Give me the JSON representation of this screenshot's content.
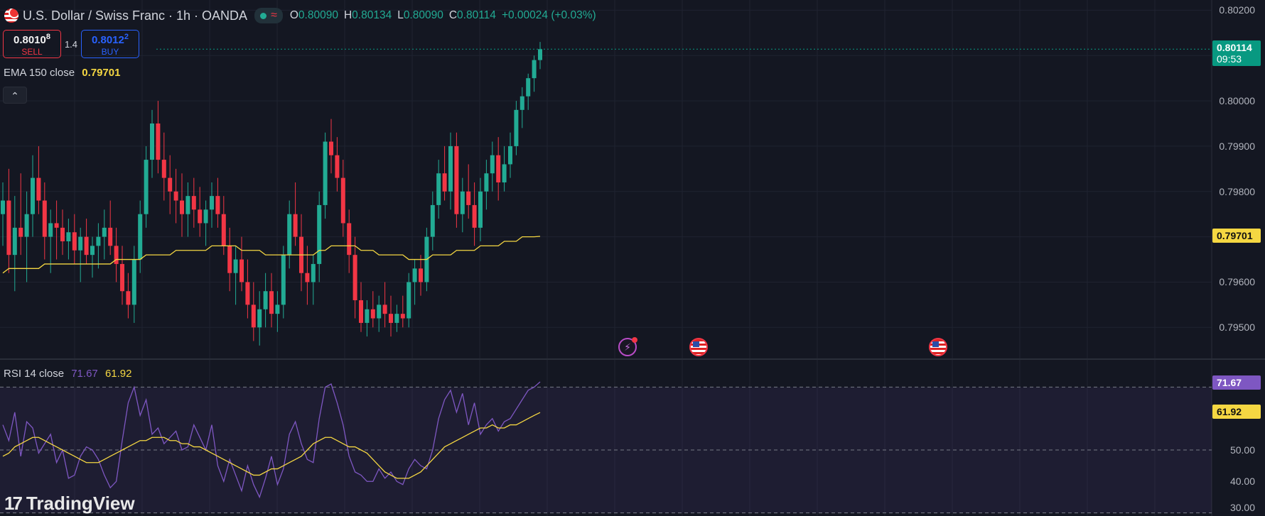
{
  "header": {
    "symbol_title": "U.S. Dollar / Swiss Franc · 1h · OANDA",
    "status_icon": "market-open-dot-icon",
    "ohlc": [
      {
        "k": "O",
        "v": "0.80090"
      },
      {
        "k": "H",
        "v": "0.80134"
      },
      {
        "k": "L",
        "v": "0.80090"
      },
      {
        "k": "C",
        "v": "0.80114"
      },
      {
        "k": "",
        "v": "+0.00024 (+0.03%)"
      }
    ]
  },
  "trade": {
    "sell_price": "0.8010",
    "sell_pip": "8",
    "sell_label": "SELL",
    "spread": "1.4",
    "buy_price": "0.8012",
    "buy_pip": "2",
    "buy_label": "BUY"
  },
  "ema": {
    "label": "EMA 150 close",
    "value": "0.79701",
    "color": "#f5d742"
  },
  "rsi": {
    "label": "RSI 14 close",
    "value": "71.67",
    "ma_value": "61.92",
    "color": "#7e57c2",
    "ma_color": "#f5d742"
  },
  "current_price": {
    "value": "0.80114",
    "countdown": "09:53",
    "color": "#089981"
  },
  "price_axis": [
    "0.80200",
    "0.80000",
    "0.79900",
    "0.79800",
    "0.79600",
    "0.79500"
  ],
  "rsi_axis": [
    "50.00",
    "40.00",
    "30.00"
  ],
  "logo": {
    "text": "TradingView",
    "icon": "tradingview-logo-icon"
  },
  "events": [
    {
      "icon": "flash-event-icon"
    },
    {
      "icon": "us-flag-event-icon"
    },
    {
      "icon": "us-flag-event-icon"
    }
  ],
  "chart_data": {
    "type": "candlestick",
    "price_range": [
      0.7943,
      0.8021
    ],
    "candles": [
      [
        0.7975,
        0.7982,
        0.7968,
        0.7978
      ],
      [
        0.7978,
        0.7985,
        0.7962,
        0.7966
      ],
      [
        0.7966,
        0.7979,
        0.7958,
        0.7972
      ],
      [
        0.7972,
        0.7984,
        0.7966,
        0.797
      ],
      [
        0.797,
        0.798,
        0.796,
        0.7975
      ],
      [
        0.7975,
        0.7988,
        0.797,
        0.7983
      ],
      [
        0.7983,
        0.799,
        0.7975,
        0.7978
      ],
      [
        0.7978,
        0.7982,
        0.7965,
        0.797
      ],
      [
        0.797,
        0.7976,
        0.7962,
        0.7973
      ],
      [
        0.7973,
        0.7978,
        0.7965,
        0.7972
      ],
      [
        0.7972,
        0.7976,
        0.7966,
        0.7969
      ],
      [
        0.7969,
        0.7974,
        0.7965,
        0.7971
      ],
      [
        0.7971,
        0.7975,
        0.7964,
        0.7967
      ],
      [
        0.7967,
        0.7972,
        0.796,
        0.797
      ],
      [
        0.797,
        0.7974,
        0.7964,
        0.7966
      ],
      [
        0.7966,
        0.797,
        0.7961,
        0.7968
      ],
      [
        0.7968,
        0.7973,
        0.7963,
        0.797
      ],
      [
        0.797,
        0.7976,
        0.7965,
        0.7972
      ],
      [
        0.7972,
        0.7978,
        0.7966,
        0.7968
      ],
      [
        0.7968,
        0.7972,
        0.796,
        0.7964
      ],
      [
        0.7964,
        0.7968,
        0.7955,
        0.7958
      ],
      [
        0.7958,
        0.7962,
        0.7952,
        0.7955
      ],
      [
        0.7955,
        0.7968,
        0.7951,
        0.7965
      ],
      [
        0.7965,
        0.7978,
        0.7962,
        0.7975
      ],
      [
        0.7975,
        0.799,
        0.7972,
        0.7987
      ],
      [
        0.7987,
        0.7998,
        0.7983,
        0.7995
      ],
      [
        0.7995,
        0.8,
        0.7984,
        0.7987
      ],
      [
        0.7987,
        0.7993,
        0.7978,
        0.7983
      ],
      [
        0.7983,
        0.7988,
        0.7975,
        0.798
      ],
      [
        0.798,
        0.7985,
        0.7973,
        0.7978
      ],
      [
        0.7978,
        0.7984,
        0.797,
        0.7975
      ],
      [
        0.7975,
        0.7982,
        0.797,
        0.7979
      ],
      [
        0.7979,
        0.7983,
        0.7972,
        0.7976
      ],
      [
        0.7976,
        0.7981,
        0.797,
        0.7973
      ],
      [
        0.7973,
        0.7978,
        0.7968,
        0.7976
      ],
      [
        0.7976,
        0.7982,
        0.7972,
        0.7979
      ],
      [
        0.7979,
        0.7983,
        0.7972,
        0.7975
      ],
      [
        0.7975,
        0.7979,
        0.7966,
        0.7968
      ],
      [
        0.7968,
        0.7972,
        0.7958,
        0.7962
      ],
      [
        0.7962,
        0.7968,
        0.7955,
        0.7965
      ],
      [
        0.7965,
        0.797,
        0.7958,
        0.796
      ],
      [
        0.796,
        0.7965,
        0.7952,
        0.7955
      ],
      [
        0.7955,
        0.796,
        0.7947,
        0.795
      ],
      [
        0.795,
        0.7958,
        0.7946,
        0.7954
      ],
      [
        0.7954,
        0.7962,
        0.795,
        0.7958
      ],
      [
        0.7958,
        0.7962,
        0.795,
        0.7953
      ],
      [
        0.7953,
        0.7958,
        0.7949,
        0.7955
      ],
      [
        0.7955,
        0.7968,
        0.7952,
        0.7966
      ],
      [
        0.7966,
        0.7978,
        0.7963,
        0.7975
      ],
      [
        0.7975,
        0.7982,
        0.7968,
        0.797
      ],
      [
        0.797,
        0.7975,
        0.7958,
        0.7962
      ],
      [
        0.7962,
        0.7968,
        0.7955,
        0.796
      ],
      [
        0.796,
        0.7966,
        0.7955,
        0.7964
      ],
      [
        0.7964,
        0.798,
        0.796,
        0.7977
      ],
      [
        0.7977,
        0.7993,
        0.7974,
        0.7991
      ],
      [
        0.7991,
        0.7996,
        0.7984,
        0.7988
      ],
      [
        0.7988,
        0.7992,
        0.798,
        0.7983
      ],
      [
        0.7983,
        0.7987,
        0.797,
        0.7973
      ],
      [
        0.7973,
        0.7976,
        0.7962,
        0.7966
      ],
      [
        0.7966,
        0.797,
        0.7952,
        0.7956
      ],
      [
        0.7956,
        0.796,
        0.7949,
        0.7951
      ],
      [
        0.7951,
        0.7956,
        0.7948,
        0.7954
      ],
      [
        0.7954,
        0.7958,
        0.795,
        0.7952
      ],
      [
        0.7952,
        0.7957,
        0.7949,
        0.7955
      ],
      [
        0.7955,
        0.796,
        0.795,
        0.7953
      ],
      [
        0.7953,
        0.7957,
        0.7948,
        0.7951
      ],
      [
        0.7951,
        0.7955,
        0.7949,
        0.7953
      ],
      [
        0.7953,
        0.7957,
        0.795,
        0.7952
      ],
      [
        0.7952,
        0.7962,
        0.795,
        0.796
      ],
      [
        0.796,
        0.7965,
        0.7955,
        0.7963
      ],
      [
        0.7963,
        0.7966,
        0.7957,
        0.796
      ],
      [
        0.796,
        0.7972,
        0.7958,
        0.797
      ],
      [
        0.797,
        0.798,
        0.7967,
        0.7977
      ],
      [
        0.7977,
        0.7987,
        0.7974,
        0.7984
      ],
      [
        0.7984,
        0.799,
        0.7978,
        0.798
      ],
      [
        0.798,
        0.7993,
        0.7976,
        0.799
      ],
      [
        0.799,
        0.7993,
        0.7972,
        0.7975
      ],
      [
        0.7975,
        0.7983,
        0.7971,
        0.798
      ],
      [
        0.798,
        0.7986,
        0.7974,
        0.7977
      ],
      [
        0.7977,
        0.7982,
        0.7968,
        0.7972
      ],
      [
        0.7972,
        0.7983,
        0.7969,
        0.798
      ],
      [
        0.798,
        0.7987,
        0.7976,
        0.7984
      ],
      [
        0.7984,
        0.7991,
        0.798,
        0.7988
      ],
      [
        0.7988,
        0.7992,
        0.7978,
        0.7982
      ],
      [
        0.7982,
        0.799,
        0.798,
        0.7986
      ],
      [
        0.7986,
        0.7993,
        0.7983,
        0.799
      ],
      [
        0.799,
        0.8,
        0.7988,
        0.7998
      ],
      [
        0.7998,
        0.8003,
        0.7994,
        0.8001
      ],
      [
        0.8001,
        0.8006,
        0.7998,
        0.8005
      ],
      [
        0.8005,
        0.801,
        0.8002,
        0.8009
      ],
      [
        0.8009,
        0.8013,
        0.8007,
        0.80114
      ]
    ],
    "ema150": [
      0.7962,
      0.7963,
      0.7963,
      0.7963,
      0.7963,
      0.7963,
      0.7963,
      0.7964,
      0.7964,
      0.7964,
      0.7964,
      0.7964,
      0.7964,
      0.7964,
      0.7964,
      0.7964,
      0.7964,
      0.7964,
      0.7964,
      0.7965,
      0.7965,
      0.7965,
      0.7965,
      0.7965,
      0.7966,
      0.7966,
      0.7966,
      0.7966,
      0.7966,
      0.7967,
      0.7967,
      0.7967,
      0.7967,
      0.7967,
      0.7967,
      0.7968,
      0.7968,
      0.7968,
      0.7968,
      0.7968,
      0.7967,
      0.7967,
      0.7967,
      0.7967,
      0.7966,
      0.7966,
      0.7966,
      0.7966,
      0.7966,
      0.7966,
      0.7966,
      0.7966,
      0.7966,
      0.7967,
      0.7967,
      0.7968,
      0.7968,
      0.7968,
      0.7968,
      0.7968,
      0.7967,
      0.7967,
      0.7967,
      0.7966,
      0.7966,
      0.7966,
      0.7966,
      0.7966,
      0.7965,
      0.7965,
      0.7965,
      0.7965,
      0.7966,
      0.7966,
      0.7966,
      0.7966,
      0.7967,
      0.7967,
      0.7967,
      0.7967,
      0.7968,
      0.7968,
      0.7968,
      0.7968,
      0.7969,
      0.7969,
      0.7969,
      0.797,
      0.797,
      0.797,
      0.79701
    ],
    "rsi_range": [
      29,
      78
    ],
    "rsi": [
      58,
      53,
      62,
      48,
      59,
      57,
      49,
      52,
      55,
      46,
      50,
      41,
      42,
      48,
      51,
      50,
      47,
      42,
      38,
      40,
      53,
      65,
      70,
      61,
      66,
      55,
      57,
      52,
      54,
      56,
      50,
      51,
      58,
      54,
      50,
      58,
      45,
      40,
      47,
      42,
      37,
      45,
      39,
      35,
      41,
      48,
      39,
      44,
      55,
      59,
      52,
      47,
      46,
      60,
      70,
      71,
      65,
      58,
      48,
      43,
      42,
      40,
      40,
      44,
      41,
      43,
      40,
      39,
      44,
      47,
      45,
      44,
      50,
      60,
      66,
      69,
      62,
      68,
      58,
      65,
      55,
      58,
      60,
      56,
      59,
      60,
      63,
      66,
      69,
      70,
      71.67
    ],
    "rsi_ma": [
      48,
      49,
      51,
      52,
      53,
      54,
      54,
      53,
      52,
      51,
      50,
      49,
      48,
      47,
      46,
      46,
      46,
      47,
      48,
      49,
      50,
      51,
      52,
      53,
      53,
      54,
      54,
      54,
      53,
      53,
      52,
      52,
      51,
      51,
      50,
      49,
      48,
      47,
      46,
      45,
      44,
      43,
      42,
      42,
      43,
      44,
      44,
      45,
      46,
      47,
      48,
      50,
      52,
      53,
      54,
      54,
      53,
      52,
      51,
      51,
      50,
      49,
      47,
      45,
      43,
      42,
      41,
      41,
      41,
      42,
      43,
      45,
      47,
      49,
      51,
      52,
      53,
      54,
      55,
      56,
      57,
      57,
      58,
      57,
      57,
      58,
      58,
      59,
      60,
      61,
      61.92
    ],
    "rsi_levels": [
      70,
      50,
      30
    ],
    "xlabel": "",
    "ylabel": ""
  }
}
